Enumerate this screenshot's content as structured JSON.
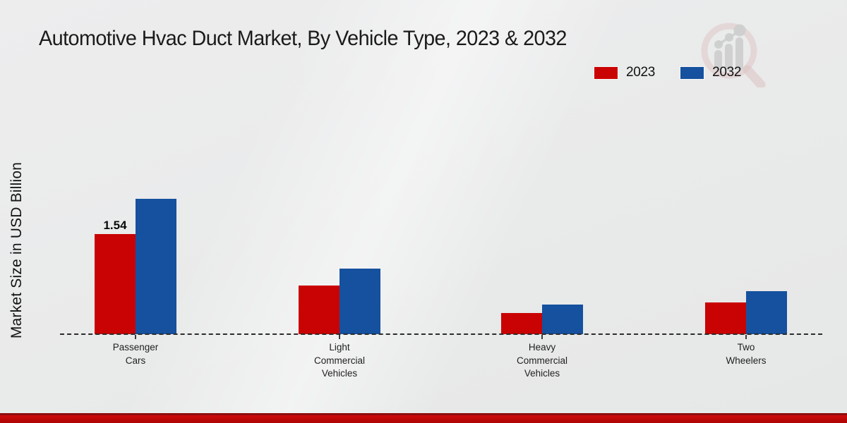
{
  "header": {
    "title": "Automotive Hvac Duct Market, By Vehicle Type, 2023 & 2032"
  },
  "logo": {
    "icon": "magnifier-bar-chart-watermark-icon"
  },
  "legend": {
    "items": [
      {
        "label": "2023",
        "color": "#c90303"
      },
      {
        "label": "2032",
        "color": "#15519e"
      }
    ]
  },
  "chart_data": {
    "type": "bar",
    "title": "Automotive Hvac Duct Market, By Vehicle Type, 2023 & 2032",
    "xlabel": "",
    "ylabel": "Market Size in USD Billion",
    "categories": [
      "Passenger Cars",
      "Light Commercial Vehicles",
      "Heavy Commercial Vehicles",
      "Two Wheelers"
    ],
    "series": [
      {
        "name": "2023",
        "color": "#c90303",
        "values": [
          1.54,
          0.75,
          0.33,
          0.49
        ]
      },
      {
        "name": "2032",
        "color": "#15519e",
        "values": [
          2.08,
          1.01,
          0.46,
          0.66
        ]
      }
    ],
    "annotations": [
      {
        "category": "Passenger Cars",
        "series": "2023",
        "text": "1.54"
      }
    ],
    "ylim": [
      0,
      2.3
    ],
    "grid": false,
    "legend_position": "top-right",
    "baseline_style": "dashed"
  },
  "footer": {
    "accent_color": "#c00808"
  }
}
